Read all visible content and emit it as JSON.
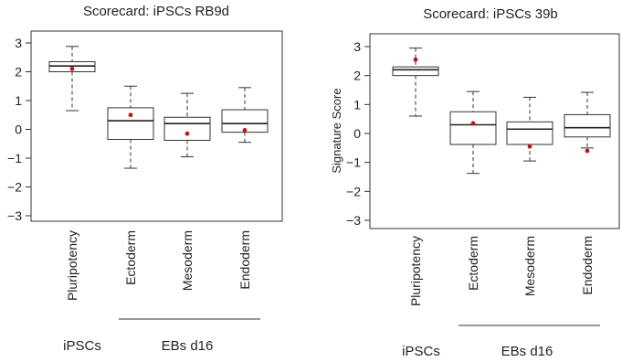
{
  "chart_data": [
    {
      "type": "box",
      "title": "Scorecard: iPSCs RB9d",
      "ylabel": "",
      "ylim": [
        -3.3,
        3.3
      ],
      "yticks": [
        "3",
        "2",
        "1",
        "0",
        "−1",
        "−2",
        "−3"
      ],
      "ytick_values": [
        3,
        2,
        1,
        0,
        -1,
        -2,
        -3
      ],
      "categories": [
        "Pluripotency",
        "Ectoderm",
        "Mesoderm",
        "Endoderm"
      ],
      "boxes": [
        {
          "category": "Pluripotency",
          "whisker_low": 0.65,
          "q1": 2.0,
          "median": 2.2,
          "q3": 2.35,
          "whisker_high": 2.88,
          "point": 2.1
        },
        {
          "category": "Ectoderm",
          "whisker_low": -1.35,
          "q1": -0.35,
          "median": 0.3,
          "q3": 0.75,
          "whisker_high": 1.5,
          "point": 0.5
        },
        {
          "category": "Mesoderm",
          "whisker_low": -0.95,
          "q1": -0.38,
          "median": 0.2,
          "q3": 0.42,
          "whisker_high": 1.25,
          "point": -0.15
        },
        {
          "category": "Endoderm",
          "whisker_low": -0.45,
          "q1": -0.1,
          "median": 0.2,
          "q3": 0.68,
          "whisker_high": 1.45,
          "point": -0.03
        }
      ],
      "point_color": "#c0141a",
      "group_labels": {
        "left": "iPSCs",
        "right": "EBs d16"
      }
    },
    {
      "type": "box",
      "title": "Scorecard: iPSCs 39b",
      "ylabel": "Signature Score",
      "ylim": [
        -3.3,
        3.3
      ],
      "yticks": [
        "3",
        "2",
        "1",
        "0",
        "−1",
        "−2",
        "−3"
      ],
      "ytick_values": [
        3,
        2,
        1,
        0,
        -1,
        -2,
        -3
      ],
      "categories": [
        "Pluripotency",
        "Ectoderm",
        "Mesoderm",
        "Endoderm"
      ],
      "boxes": [
        {
          "category": "Pluripotency",
          "whisker_low": 0.6,
          "q1": 2.0,
          "median": 2.2,
          "q3": 2.3,
          "whisker_high": 2.95,
          "point": 2.55
        },
        {
          "category": "Ectoderm",
          "whisker_low": -1.38,
          "q1": -0.38,
          "median": 0.3,
          "q3": 0.75,
          "whisker_high": 1.45,
          "point": 0.35
        },
        {
          "category": "Mesoderm",
          "whisker_low": -0.95,
          "q1": -0.38,
          "median": 0.15,
          "q3": 0.4,
          "whisker_high": 1.25,
          "point": -0.45
        },
        {
          "category": "Endoderm",
          "whisker_low": -0.5,
          "q1": -0.12,
          "median": 0.2,
          "q3": 0.65,
          "whisker_high": 1.42,
          "point": -0.6
        }
      ],
      "point_color": "#c0141a",
      "group_labels": {
        "left": "iPSCs",
        "right": "EBs d16"
      }
    }
  ]
}
